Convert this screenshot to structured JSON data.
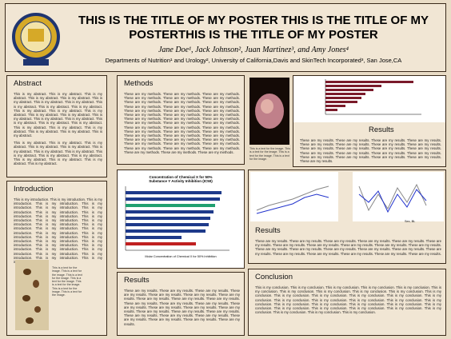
{
  "header": {
    "title": "THIS IS THE TITLE OF MY POSTER THIS IS THE TITLE OF MY POSTERTHIS IS THE TITLE OF MY POSTER",
    "authors": "Jane Doe¹, Jack Johnson², Juan Martinez³, and Amy Jones⁴",
    "affiliation": "Departments of Nutrition¹ and Urology², University of California,Davis and SkinTech Incorporated³, San Jose,CA"
  },
  "abstract": {
    "heading": "Abstract",
    "paragraphs": [
      "This is my abstract. This is my abstract. This is my abstract. This is my abstract. This is my abstract. This is my abstract. This is my abstract. This is my abstract. This is my abstract. This is my abstract. This is my abstract. This is my abstract. This is my abstract. This is my abstract. This is my abstract. This is my abstract. This is my abstract. This is my abstract. This is my abstract. This is my abstract. This is my abstract. This is my abstract. This is my abstract. This is my abstract. This is my abstract. This is my abstract. This is my abstract. This is my abstract.",
      "This is my abstract. This is my abstract. This is my abstract. This is my abstract. This is my abstract. This is my abstract. This is my abstract. This is my abstract. This is my abstract. This is my abstract. This is my abstract. This is my abstract. This is my abstract. This is my abstract. This is my abstract."
    ]
  },
  "introduction": {
    "heading": "Introduction",
    "paragraphs": [
      "This is my introduction. This is my introduction. This is my introduction. This is my introduction. This is my introduction. This is my introduction. This is my introduction. This is my introduction. This is my introduction. This is my introduction. This is my introduction. This is my introduction. This is my introduction. This is my introduction. This is my introduction. This is my introduction. This is my introduction. This is my introduction. This is my introduction. This is my introduction. This is my introduction. This is my introduction. This is my introduction. This is my introduction. This is my introduction. This is my introduction. This is my introduction. This is my introduction. This is my introduction. This is my introduction. This is my introduction."
    ],
    "caption": "This is a text for the image. This is a text for the image. This is a text for the image. This is a text for the image. This is a text for the image. This is a text for the image. This is a text for the image."
  },
  "methods": {
    "heading": "Methods",
    "paragraphs": [
      "These are my methods. These are my methods. These are my methods. These are my methods. These are my methods. These are my methods. These are my methods. These are my methods. These are my methods. These are my methods. These are my methods. These are my methods. These are my methods. These are my methods. These are my methods. These are my methods. These are my methods. These are my methods. These are my methods. These are my methods. These are my methods. These are my methods. These are my methods. These are my methods. These are my methods. These are my methods. These are my methods. These are my methods. These are my methods. These are my methods. These are my methods. These are my methods. These are my methods. These are my methods. These are my methods. These are my methods. These are my methods. These are my methods. These are my methods. These are my methods. These are my methods. These are my methods. These are my methods. These are my methods. These are my methods."
    ],
    "photo_caption": "This is a text for the image. This is a text for the image. This is a text for the image. This is a text for the image."
  },
  "results_top": {
    "heading": "Results",
    "paragraphs": [
      "These are my results. These are my results. These are my results. These are my results. These are my results. These are my results. These are my results. These are my results. These are my results. These are my results. These are my results. These are my results. These are my results. These are my results. These are my results. These are my results. These are my results. These are my results. These are my results. These are my results. These are my results."
    ]
  },
  "center_chart": {
    "title": "Concentration of Chemical X for 50% Substance Y Activity Inhibition (IC50)",
    "x_label": "Molar Concentration of Chemical X for 50% Inhibition"
  },
  "results_center": {
    "heading": "Results",
    "paragraphs": [
      "These are my results. These are my results. These are my results. These are my results. These are my results. These are my results. These are my results. These are my results. These are my results. These are my results. These are my results. These are my results. These are my results. These are my results. These are my results. These are my results. These are my results. These are my results. These are my results. These are my results. These are my results. These are my results. These are my results. These are my results. These are my results. These are my results. These are my results."
    ]
  },
  "results_right": {
    "heading": "Results",
    "paragraphs": [
      "These are my results. These are my results. These are my results. These are my results. These are my results. These are my results. These are my results. These are my results. These are my results. These are my results. These are my results. These are my results. These are my results. These are my results. These are my results. These are my results. These are my results. These are my results. These are my results. These are my results. These are my results. These are my results."
    ]
  },
  "right_chart": {
    "x_label": "Sex, BL"
  },
  "conclusion": {
    "heading": "Conclusion",
    "paragraphs": [
      "This is my conclusion. This is my conclusion. This is my conclusion. This is my conclusion. This is my conclusion. This is my conclusion. This is my conclusion. This is my conclusion. This is my conclusion. This is my conclusion. This is my conclusion. This is my conclusion. This is my conclusion. This is my conclusion. This is my conclusion. This is my conclusion. This is my conclusion. This is my conclusion. This is my conclusion. This is my conclusion. This is my conclusion. This is my conclusion. This is my conclusion. This is my conclusion. This is my conclusion. This is my conclusion. This is my conclusion. This is my conclusion. This is my conclusion. This is my conclusion. This is my conclusion. This is my conclusion. This is my conclusion. This is my conclusion."
    ]
  }
}
